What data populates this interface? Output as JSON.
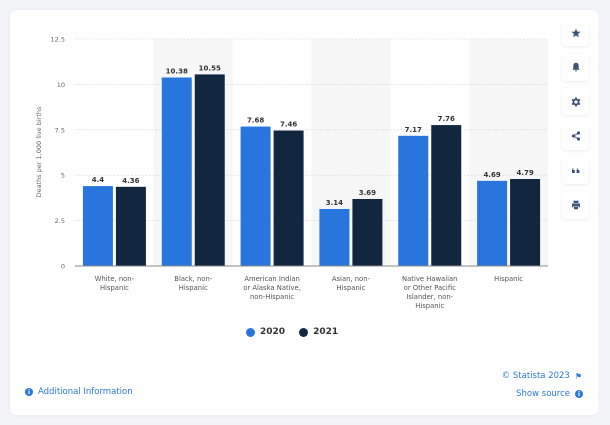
{
  "chart_data": {
    "type": "bar",
    "title": "",
    "xlabel": "",
    "ylabel": "Deaths per 1,000 live births",
    "ylim": [
      0,
      12.5
    ],
    "yticks": [
      "0",
      "2.5",
      "5",
      "7.5",
      "10",
      "12.5"
    ],
    "ytick_values": [
      0,
      2.5,
      5,
      7.5,
      10,
      12.5
    ],
    "grid": true,
    "legend_position": "bottom",
    "categories": [
      [
        "White, non-",
        "Hispanic"
      ],
      [
        "Black, non-",
        "Hispanic"
      ],
      [
        "American Indian",
        "or Alaska Native,",
        "non-Hispanic"
      ],
      [
        "Asian, non-",
        "Hispanic"
      ],
      [
        "Native Hawaiian",
        "or Other Pacific",
        "Islander, non-",
        "Hispanic"
      ],
      [
        "Hispanic"
      ]
    ],
    "series": [
      {
        "name": "2020",
        "color": "#2876dd",
        "values": [
          4.4,
          10.38,
          7.68,
          3.14,
          7.17,
          4.69
        ],
        "labels": [
          "4.4",
          "10.38",
          "7.68",
          "3.14",
          "7.17",
          "4.69"
        ]
      },
      {
        "name": "2021",
        "color": "#12263f",
        "values": [
          4.36,
          10.55,
          7.46,
          3.69,
          7.76,
          4.79
        ],
        "labels": [
          "4.36",
          "10.55",
          "7.46",
          "3.69",
          "7.76",
          "4.79"
        ]
      }
    ]
  },
  "legend": {
    "items": [
      {
        "label": "2020",
        "color": "#2876dd"
      },
      {
        "label": "2021",
        "color": "#12263f"
      }
    ]
  },
  "toolbar": {
    "icons": [
      "star-icon",
      "bell-icon",
      "gear-icon",
      "share-icon",
      "quote-icon",
      "print-icon"
    ]
  },
  "footer": {
    "additional_info": "Additional Information",
    "copyright": "© Statista 2023",
    "show_source": "Show source"
  }
}
